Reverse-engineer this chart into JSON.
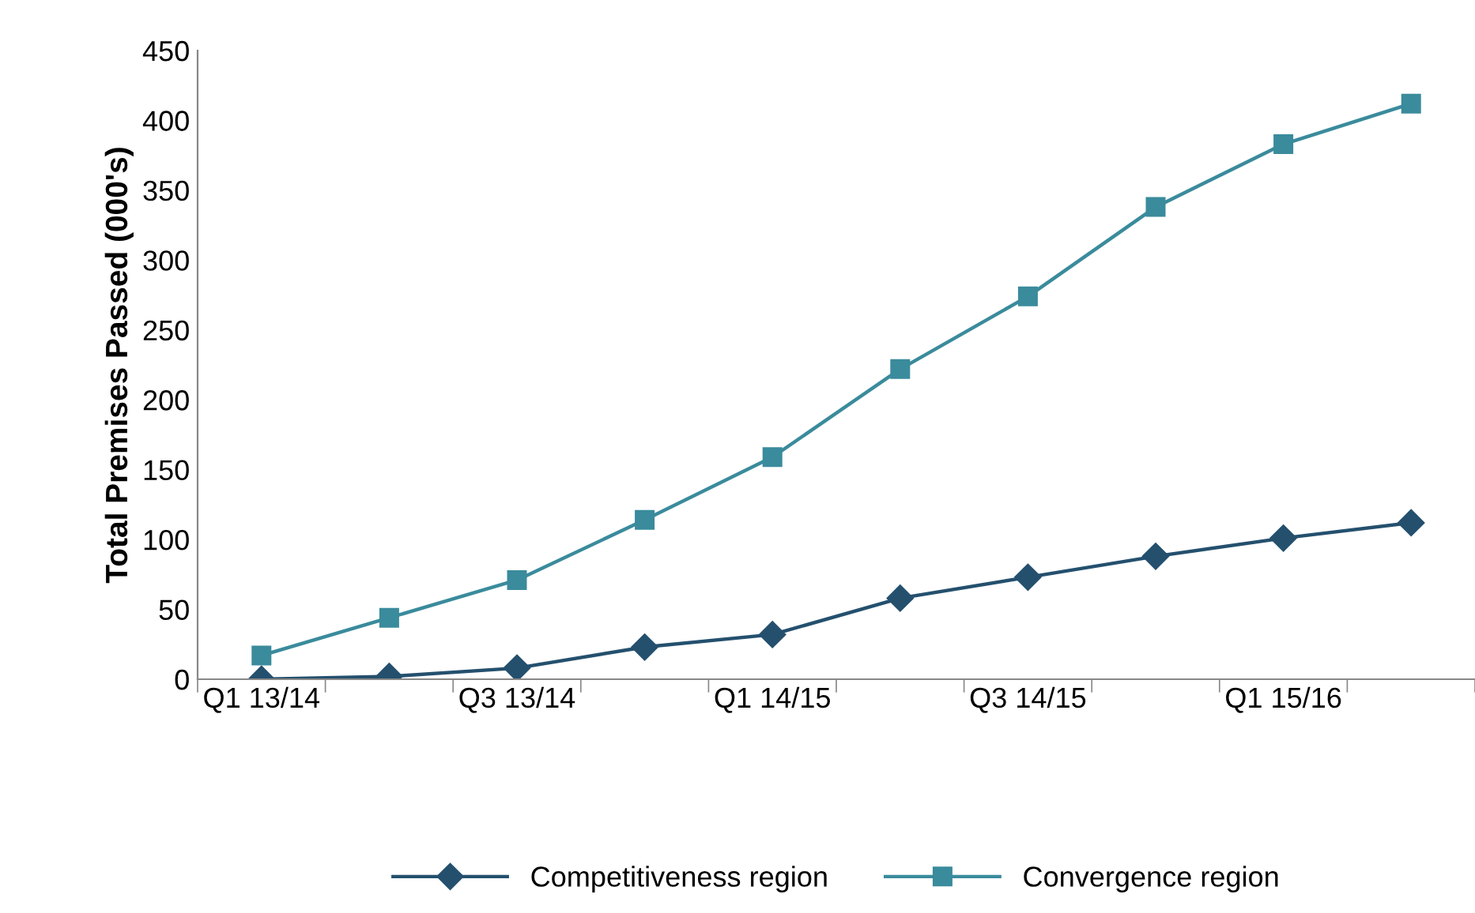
{
  "chart_data": {
    "type": "line",
    "ylabel": "Total Premises Passed (000's)",
    "categories": [
      "Q1 13/14",
      null,
      "Q3 13/14",
      null,
      "Q1 14/15",
      null,
      "Q3 14/15",
      null,
      "Q1 15/16",
      null
    ],
    "series": [
      {
        "name": "Competitiveness region",
        "color": "#24506e",
        "marker": "diamond",
        "values": [
          0,
          2,
          8,
          23,
          32,
          58,
          73,
          88,
          101,
          112
        ]
      },
      {
        "name": "Convergence region",
        "color": "#3a8b9c",
        "marker": "square",
        "values": [
          17,
          44,
          71,
          114,
          159,
          222,
          274,
          338,
          383,
          412
        ]
      }
    ],
    "ylim": [
      0,
      450
    ],
    "yticks": [
      0,
      50,
      100,
      150,
      200,
      250,
      300,
      350,
      400,
      450
    ],
    "grid": false,
    "legend": "bottom",
    "line_style": "solid"
  }
}
